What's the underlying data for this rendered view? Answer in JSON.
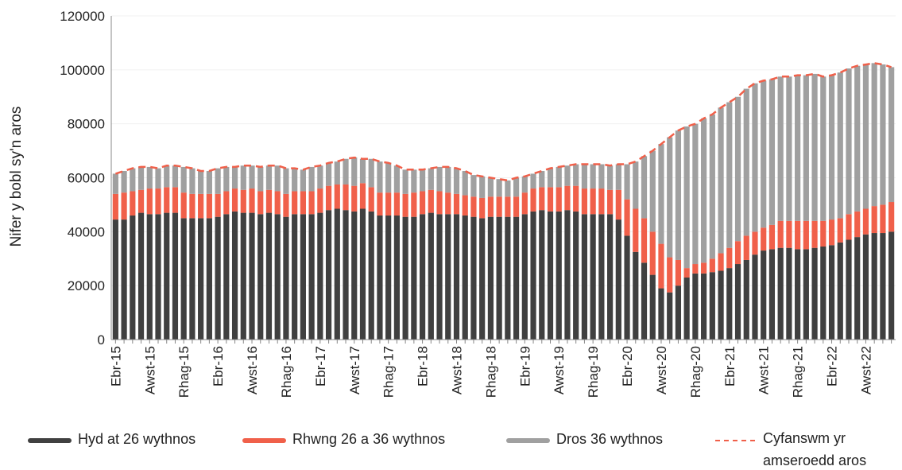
{
  "chart_data": {
    "type": "bar",
    "stacked": true,
    "y_label": "Nifer y bobl sy'n aros",
    "categories": [
      "Ebr-15",
      null,
      null,
      null,
      "Awst-15",
      null,
      null,
      null,
      "Rhag-15",
      null,
      null,
      null,
      "Ebr-16",
      null,
      null,
      null,
      "Awst-16",
      null,
      null,
      null,
      "Rhag-16",
      null,
      null,
      null,
      "Ebr-17",
      null,
      null,
      null,
      "Awst-17",
      null,
      null,
      null,
      "Rhag-17",
      null,
      null,
      null,
      "Ebr-18",
      null,
      null,
      null,
      "Awst-18",
      null,
      null,
      null,
      "Rhag-18",
      null,
      null,
      null,
      "Ebr-19",
      null,
      null,
      null,
      "Awst-19",
      null,
      null,
      null,
      "Rhag-19",
      null,
      null,
      null,
      "Ebr-20",
      null,
      null,
      null,
      "Awst-20",
      null,
      null,
      null,
      "Rhag-20",
      null,
      null,
      null,
      "Ebr-21",
      null,
      null,
      null,
      "Awst-21",
      null,
      null,
      null,
      "Rhag-21",
      null,
      null,
      null,
      "Ebr-22",
      null,
      null,
      null,
      "Awst-22",
      null,
      null,
      null
    ],
    "series": [
      {
        "name": "Hyd at 26 wythnos",
        "color": "#404040",
        "values": [
          44500,
          44500,
          46000,
          47000,
          46500,
          46500,
          47000,
          47000,
          45000,
          45000,
          45000,
          45000,
          45500,
          46500,
          47500,
          47000,
          47000,
          46500,
          47000,
          46500,
          45500,
          46500,
          46500,
          46500,
          47000,
          48000,
          48500,
          48000,
          47500,
          48500,
          47500,
          46000,
          46000,
          46000,
          45500,
          45500,
          46500,
          47000,
          46500,
          46500,
          46500,
          46000,
          45500,
          45000,
          45500,
          45500,
          45500,
          45500,
          46500,
          47500,
          48000,
          47500,
          47500,
          48000,
          47500,
          46500,
          46500,
          46500,
          46500,
          44500,
          38500,
          32500,
          28500,
          24000,
          19000,
          17500,
          20000,
          23000,
          24500,
          24500,
          25000,
          25500,
          26500,
          28000,
          29500,
          31500,
          33000,
          33500,
          34000,
          34000,
          33500,
          33500,
          34000,
          34500,
          35000,
          36000,
          37000,
          38000,
          39000,
          39500,
          39500,
          40000
        ]
      },
      {
        "name": "Rhwng 26 a 36 wythnos",
        "color": "#f0604a",
        "values": [
          9500,
          10000,
          9000,
          8500,
          9500,
          9500,
          9500,
          9500,
          9500,
          9000,
          9000,
          9000,
          8500,
          8500,
          8500,
          8500,
          9000,
          8500,
          8500,
          8500,
          8500,
          8500,
          8500,
          8500,
          9000,
          9000,
          9000,
          9500,
          9500,
          9500,
          9000,
          8500,
          8500,
          8500,
          8500,
          9000,
          8500,
          8500,
          8500,
          8000,
          7500,
          7500,
          7500,
          7500,
          7500,
          7500,
          7500,
          7500,
          8000,
          8500,
          8500,
          9000,
          9000,
          9000,
          9500,
          9500,
          9500,
          9500,
          9000,
          11000,
          13500,
          16000,
          16500,
          16000,
          16500,
          13000,
          9500,
          3500,
          3500,
          4000,
          5000,
          6500,
          7500,
          8500,
          9000,
          8500,
          8500,
          9000,
          10000,
          10000,
          10500,
          10500,
          10000,
          9500,
          9500,
          9000,
          9500,
          9500,
          9500,
          10000,
          10500,
          11000
        ]
      },
      {
        "name": "Dros 36 wythnos",
        "color": "#a0a0a0",
        "values": [
          7500,
          8000,
          8500,
          8500,
          8000,
          7500,
          8000,
          8000,
          9500,
          9500,
          8500,
          8500,
          9500,
          9000,
          8000,
          9000,
          8500,
          9000,
          9000,
          9500,
          9500,
          8500,
          8000,
          9000,
          8500,
          8500,
          8500,
          9500,
          10500,
          9000,
          10500,
          11500,
          11000,
          10000,
          9000,
          8500,
          8000,
          8000,
          9000,
          9500,
          9500,
          9000,
          8000,
          8000,
          7000,
          6500,
          6000,
          7000,
          6000,
          5500,
          6000,
          7000,
          7500,
          7500,
          8000,
          9000,
          9000,
          9000,
          9000,
          9500,
          13000,
          17500,
          23000,
          30000,
          37000,
          44500,
          48000,
          52500,
          52000,
          53500,
          53500,
          54000,
          54000,
          53500,
          54500,
          55000,
          54500,
          54000,
          53500,
          53500,
          54000,
          54000,
          54500,
          53500,
          53500,
          54000,
          54000,
          54000,
          53500,
          53000,
          52000,
          50000
        ]
      },
      {
        "name": "Cyfanswm yr amseroedd aros",
        "type": "line",
        "dashed": true,
        "color": "#f0604a",
        "values": [
          61500,
          62500,
          63500,
          64000,
          64000,
          63500,
          64500,
          64500,
          64000,
          63500,
          62500,
          62500,
          63500,
          64000,
          64000,
          64500,
          64500,
          64000,
          64500,
          64500,
          63500,
          63500,
          63000,
          64000,
          64500,
          65500,
          66000,
          67000,
          67500,
          67000,
          67000,
          66000,
          65500,
          64500,
          63000,
          63000,
          63000,
          63500,
          64000,
          64000,
          63500,
          62500,
          61000,
          60500,
          60000,
          59500,
          59000,
          60000,
          60500,
          61500,
          62500,
          63500,
          64000,
          64500,
          65000,
          65000,
          65000,
          65000,
          64500,
          65000,
          65000,
          66000,
          68000,
          70000,
          72500,
          75000,
          77500,
          79000,
          80000,
          82000,
          83500,
          86000,
          88000,
          90000,
          93000,
          95000,
          96000,
          96500,
          97500,
          97500,
          98000,
          98000,
          98500,
          97500,
          98000,
          99000,
          100500,
          101500,
          102000,
          102500,
          102000,
          101000
        ]
      }
    ],
    "ylim": [
      0,
      120000
    ],
    "yticks": [
      0,
      20000,
      40000,
      60000,
      80000,
      100000,
      120000
    ],
    "grid": true
  }
}
